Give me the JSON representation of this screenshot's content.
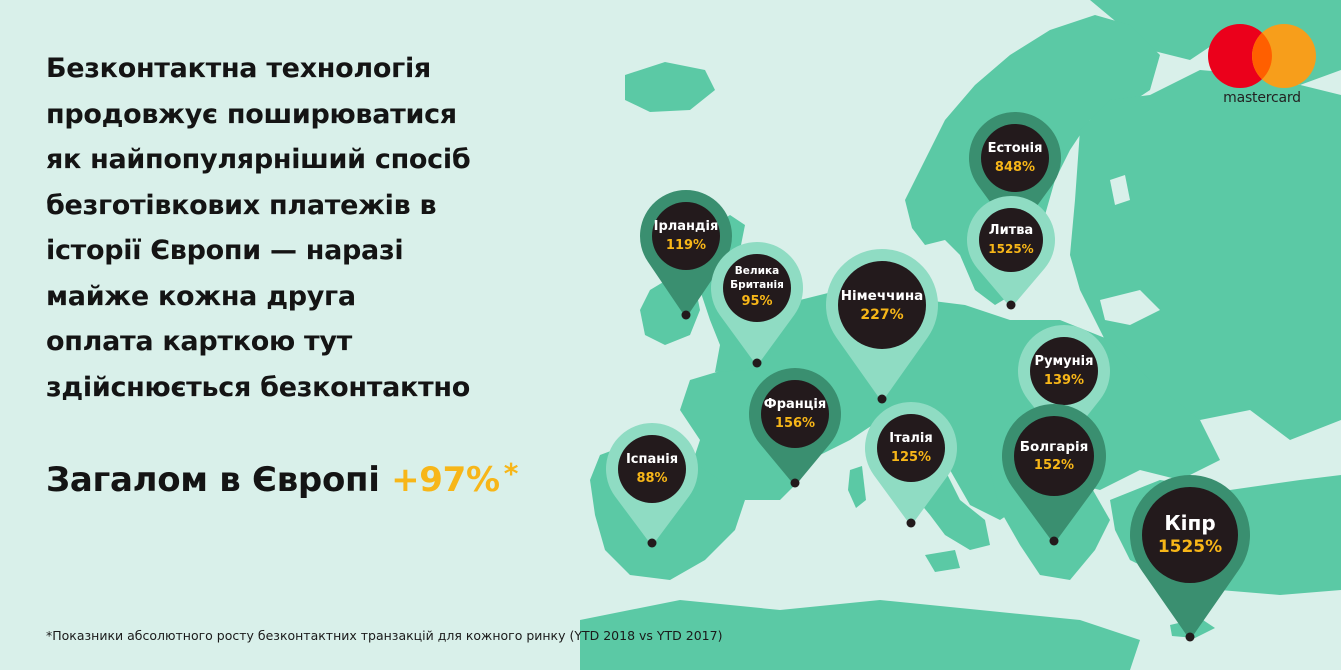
{
  "headline": {
    "lines": [
      "Безконтактна технологія",
      "продовжує поширюватися",
      "як найпопулярніший спосіб",
      "безготівкових платежів в",
      "історії Європи — наразі",
      "майже кожна друга",
      "оплата карткою тут",
      "здійснюється безконтактно"
    ]
  },
  "total": {
    "label": "Загалом в Європі",
    "value": "+97%",
    "asterisk": "*"
  },
  "footnote": "*Показники абсолютного росту безконтактних транзакцій для кожного ринку (YTD 2018 vs YTD 2017)",
  "brand": {
    "wordmark": "mastercard",
    "icon": "mastercard-logo-icon",
    "red": "#eb001b",
    "orange": "#f79e1b",
    "overlap": "#ff5f00"
  },
  "colors": {
    "background": "#d9f0ea",
    "land": "#5bc9a5",
    "pin_dark": "#3a8f70",
    "pin_light": "#8fdcc3",
    "bubble": "#231a1c",
    "accent": "#f7b618"
  },
  "map": {
    "pins": [
      {
        "id": "ireland",
        "name": "Ірландія",
        "value": "119%"
      },
      {
        "id": "uk",
        "name": "Велика Британія",
        "name_lines": [
          "Велика",
          "Британія"
        ],
        "value": "95%"
      },
      {
        "id": "estonia",
        "name": "Естонія",
        "value": "848%"
      },
      {
        "id": "lithuania",
        "name": "Литва",
        "value": "1525%"
      },
      {
        "id": "germany",
        "name": "Німеччина",
        "value": "227%"
      },
      {
        "id": "romania",
        "name": "Румунія",
        "value": "139%"
      },
      {
        "id": "france",
        "name": "Франція",
        "value": "156%"
      },
      {
        "id": "italy",
        "name": "Італія",
        "value": "125%"
      },
      {
        "id": "bulgaria",
        "name": "Болгарія",
        "value": "152%"
      },
      {
        "id": "spain",
        "name": "Іспанія",
        "value": "88%"
      },
      {
        "id": "cyprus",
        "name": "Кіпр",
        "value": "1525%"
      }
    ]
  }
}
